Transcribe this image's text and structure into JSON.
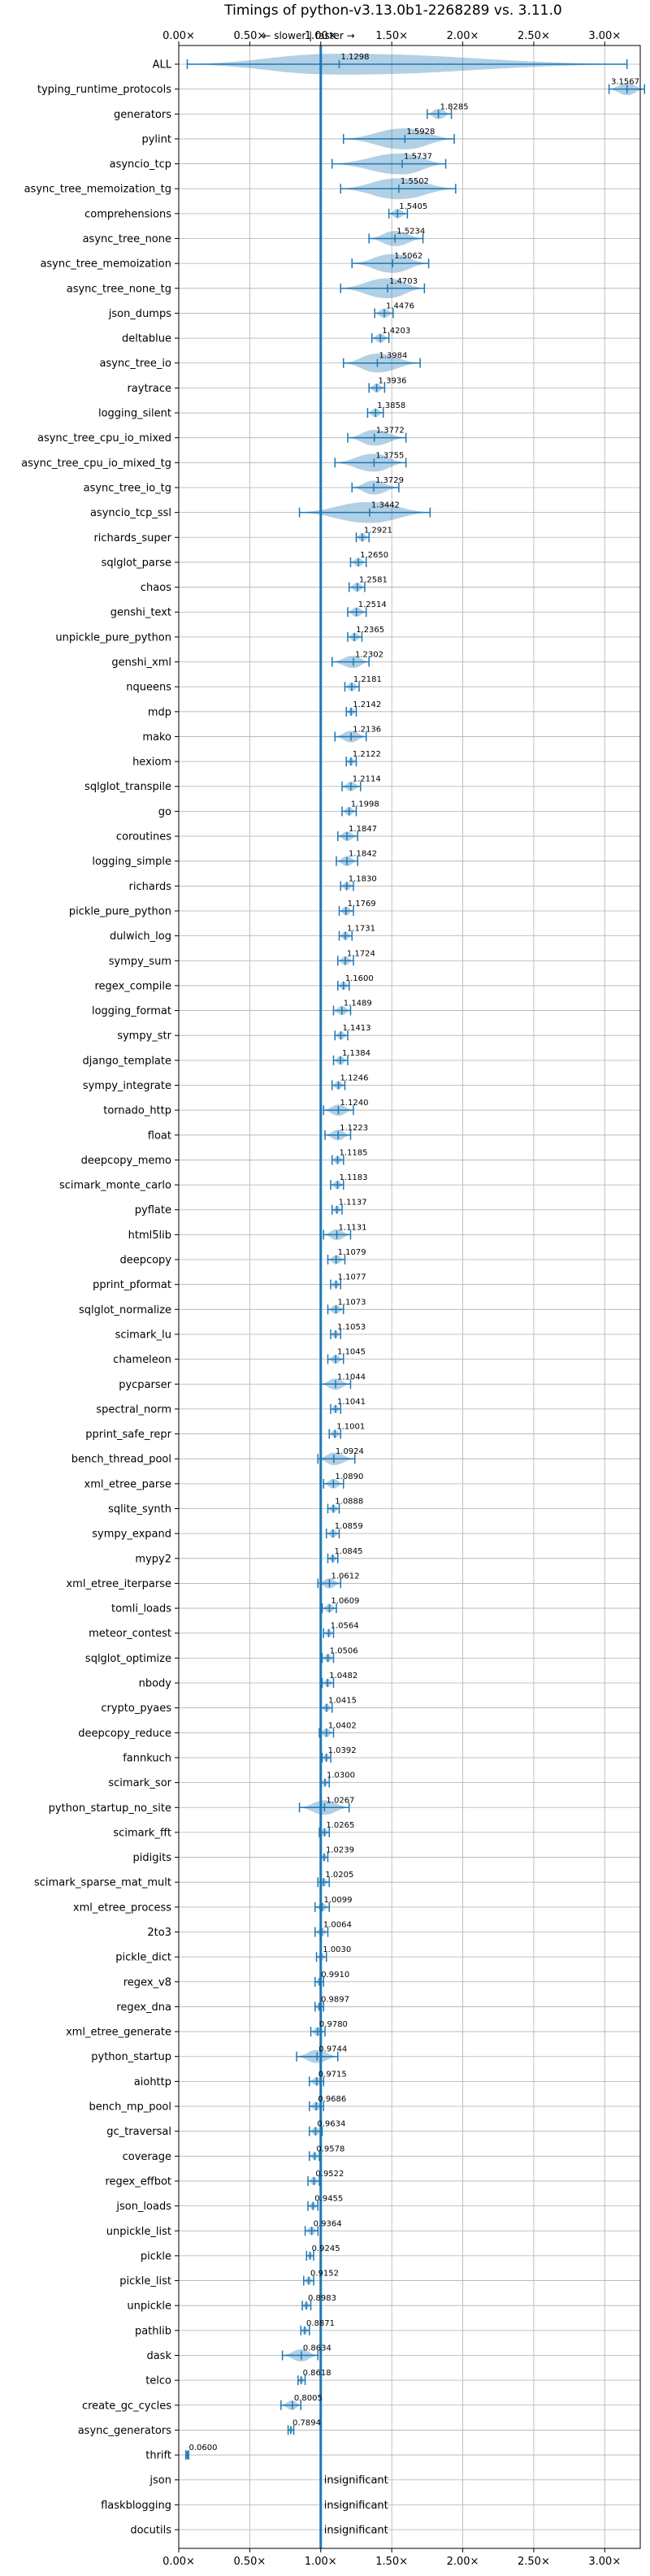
{
  "chart_data": {
    "type": "violin",
    "title": "Timings of python-v3.13.0b1-2268289 vs. 3.11.0",
    "annotation": "← slower | faster →",
    "xlim": [
      0,
      3.25
    ],
    "reference_x": 1.0,
    "grid": true,
    "x_ticks": [
      "0.00×",
      "0.50×",
      "1.00×",
      "1.50×",
      "2.00×",
      "2.50×",
      "3.00×"
    ],
    "x_tick_values": [
      0,
      0.5,
      1.0,
      1.5,
      2.0,
      2.5,
      3.0
    ],
    "insignificant_label": "insignificant",
    "colors": {
      "violin": "#1f77b4",
      "median_marker": "#d62728",
      "reference": "#1f77b4",
      "grid": "#b0b0b0"
    },
    "benchmarks": [
      {
        "name": "ALL",
        "value": 1.1298,
        "min": 0.06,
        "max": 3.1567
      },
      {
        "name": "typing_runtime_protocols",
        "value": 3.1567,
        "min": 3.03,
        "max": 3.28
      },
      {
        "name": "generators",
        "value": 1.8285,
        "min": 1.75,
        "max": 1.92
      },
      {
        "name": "pylint",
        "value": 1.5928,
        "min": 1.16,
        "max": 1.94
      },
      {
        "name": "asyncio_tcp",
        "value": 1.5737,
        "min": 1.08,
        "max": 1.88
      },
      {
        "name": "async_tree_memoization_tg",
        "value": 1.5502,
        "min": 1.14,
        "max": 1.95
      },
      {
        "name": "comprehensions",
        "value": 1.5405,
        "min": 1.48,
        "max": 1.61
      },
      {
        "name": "async_tree_none",
        "value": 1.5234,
        "min": 1.34,
        "max": 1.72
      },
      {
        "name": "async_tree_memoization",
        "value": 1.5062,
        "min": 1.22,
        "max": 1.76
      },
      {
        "name": "async_tree_none_tg",
        "value": 1.4703,
        "min": 1.14,
        "max": 1.73
      },
      {
        "name": "json_dumps",
        "value": 1.4476,
        "min": 1.38,
        "max": 1.51
      },
      {
        "name": "deltablue",
        "value": 1.4203,
        "min": 1.36,
        "max": 1.48
      },
      {
        "name": "async_tree_io",
        "value": 1.3984,
        "min": 1.16,
        "max": 1.7
      },
      {
        "name": "raytrace",
        "value": 1.3936,
        "min": 1.34,
        "max": 1.45
      },
      {
        "name": "logging_silent",
        "value": 1.3858,
        "min": 1.33,
        "max": 1.44
      },
      {
        "name": "async_tree_cpu_io_mixed",
        "value": 1.3772,
        "min": 1.19,
        "max": 1.6
      },
      {
        "name": "async_tree_cpu_io_mixed_tg",
        "value": 1.3755,
        "min": 1.1,
        "max": 1.6
      },
      {
        "name": "async_tree_io_tg",
        "value": 1.3729,
        "min": 1.22,
        "max": 1.55
      },
      {
        "name": "asyncio_tcp_ssl",
        "value": 1.3442,
        "min": 0.85,
        "max": 1.77
      },
      {
        "name": "richards_super",
        "value": 1.2921,
        "min": 1.25,
        "max": 1.34
      },
      {
        "name": "sqlglot_parse",
        "value": 1.265,
        "min": 1.21,
        "max": 1.32
      },
      {
        "name": "chaos",
        "value": 1.2581,
        "min": 1.2,
        "max": 1.31
      },
      {
        "name": "genshi_text",
        "value": 1.2514,
        "min": 1.19,
        "max": 1.32
      },
      {
        "name": "unpickle_pure_python",
        "value": 1.2365,
        "min": 1.19,
        "max": 1.29
      },
      {
        "name": "genshi_xml",
        "value": 1.2302,
        "min": 1.08,
        "max": 1.34
      },
      {
        "name": "nqueens",
        "value": 1.2181,
        "min": 1.17,
        "max": 1.27
      },
      {
        "name": "mdp",
        "value": 1.2142,
        "min": 1.18,
        "max": 1.25
      },
      {
        "name": "mako",
        "value": 1.2136,
        "min": 1.1,
        "max": 1.32
      },
      {
        "name": "hexiom",
        "value": 1.2122,
        "min": 1.18,
        "max": 1.25
      },
      {
        "name": "sqlglot_transpile",
        "value": 1.2114,
        "min": 1.15,
        "max": 1.28
      },
      {
        "name": "go",
        "value": 1.1998,
        "min": 1.15,
        "max": 1.25
      },
      {
        "name": "coroutines",
        "value": 1.1847,
        "min": 1.12,
        "max": 1.26
      },
      {
        "name": "logging_simple",
        "value": 1.1842,
        "min": 1.11,
        "max": 1.26
      },
      {
        "name": "richards",
        "value": 1.183,
        "min": 1.14,
        "max": 1.23
      },
      {
        "name": "pickle_pure_python",
        "value": 1.1769,
        "min": 1.13,
        "max": 1.23
      },
      {
        "name": "dulwich_log",
        "value": 1.1731,
        "min": 1.13,
        "max": 1.22
      },
      {
        "name": "sympy_sum",
        "value": 1.1724,
        "min": 1.12,
        "max": 1.23
      },
      {
        "name": "regex_compile",
        "value": 1.16,
        "min": 1.12,
        "max": 1.2
      },
      {
        "name": "logging_format",
        "value": 1.1489,
        "min": 1.09,
        "max": 1.21
      },
      {
        "name": "sympy_str",
        "value": 1.1413,
        "min": 1.1,
        "max": 1.19
      },
      {
        "name": "django_template",
        "value": 1.1384,
        "min": 1.09,
        "max": 1.19
      },
      {
        "name": "sympy_integrate",
        "value": 1.1246,
        "min": 1.08,
        "max": 1.17
      },
      {
        "name": "tornado_http",
        "value": 1.124,
        "min": 1.02,
        "max": 1.23
      },
      {
        "name": "float",
        "value": 1.1223,
        "min": 1.03,
        "max": 1.21
      },
      {
        "name": "deepcopy_memo",
        "value": 1.1185,
        "min": 1.08,
        "max": 1.16
      },
      {
        "name": "scimark_monte_carlo",
        "value": 1.1183,
        "min": 1.07,
        "max": 1.16
      },
      {
        "name": "pyflate",
        "value": 1.1137,
        "min": 1.08,
        "max": 1.15
      },
      {
        "name": "html5lib",
        "value": 1.1131,
        "min": 1.02,
        "max": 1.21
      },
      {
        "name": "deepcopy",
        "value": 1.1079,
        "min": 1.05,
        "max": 1.17
      },
      {
        "name": "pprint_pformat",
        "value": 1.1077,
        "min": 1.07,
        "max": 1.14
      },
      {
        "name": "sqlglot_normalize",
        "value": 1.1073,
        "min": 1.05,
        "max": 1.16
      },
      {
        "name": "scimark_lu",
        "value": 1.1053,
        "min": 1.07,
        "max": 1.14
      },
      {
        "name": "chameleon",
        "value": 1.1045,
        "min": 1.05,
        "max": 1.16
      },
      {
        "name": "pycparser",
        "value": 1.1044,
        "min": 1.0,
        "max": 1.21
      },
      {
        "name": "spectral_norm",
        "value": 1.1041,
        "min": 1.07,
        "max": 1.14
      },
      {
        "name": "pprint_safe_repr",
        "value": 1.1001,
        "min": 1.06,
        "max": 1.14
      },
      {
        "name": "bench_thread_pool",
        "value": 1.0924,
        "min": 0.98,
        "max": 1.24
      },
      {
        "name": "xml_etree_parse",
        "value": 1.089,
        "min": 1.02,
        "max": 1.16
      },
      {
        "name": "sqlite_synth",
        "value": 1.0888,
        "min": 1.05,
        "max": 1.13
      },
      {
        "name": "sympy_expand",
        "value": 1.0859,
        "min": 1.04,
        "max": 1.13
      },
      {
        "name": "mypy2",
        "value": 1.0845,
        "min": 1.05,
        "max": 1.12
      },
      {
        "name": "xml_etree_iterparse",
        "value": 1.0612,
        "min": 0.98,
        "max": 1.14
      },
      {
        "name": "tomli_loads",
        "value": 1.0609,
        "min": 1.01,
        "max": 1.11
      },
      {
        "name": "meteor_contest",
        "value": 1.0564,
        "min": 1.02,
        "max": 1.09
      },
      {
        "name": "sqlglot_optimize",
        "value": 1.0506,
        "min": 1.01,
        "max": 1.09
      },
      {
        "name": "nbody",
        "value": 1.0482,
        "min": 1.01,
        "max": 1.09
      },
      {
        "name": "crypto_pyaes",
        "value": 1.0415,
        "min": 1.0,
        "max": 1.08
      },
      {
        "name": "deepcopy_reduce",
        "value": 1.0402,
        "min": 0.99,
        "max": 1.09
      },
      {
        "name": "fannkuch",
        "value": 1.0392,
        "min": 1.01,
        "max": 1.07
      },
      {
        "name": "scimark_sor",
        "value": 1.03,
        "min": 1.0,
        "max": 1.06
      },
      {
        "name": "python_startup_no_site",
        "value": 1.0267,
        "min": 0.85,
        "max": 1.2
      },
      {
        "name": "scimark_fft",
        "value": 1.0265,
        "min": 0.99,
        "max": 1.06
      },
      {
        "name": "pidigits",
        "value": 1.0239,
        "min": 1.0,
        "max": 1.05
      },
      {
        "name": "scimark_sparse_mat_mult",
        "value": 1.0205,
        "min": 0.98,
        "max": 1.06
      },
      {
        "name": "xml_etree_process",
        "value": 1.0099,
        "min": 0.96,
        "max": 1.06
      },
      {
        "name": "2to3",
        "value": 1.0064,
        "min": 0.96,
        "max": 1.05
      },
      {
        "name": "pickle_dict",
        "value": 1.003,
        "min": 0.97,
        "max": 1.04
      },
      {
        "name": "regex_v8",
        "value": 0.991,
        "min": 0.96,
        "max": 1.02
      },
      {
        "name": "regex_dna",
        "value": 0.9897,
        "min": 0.96,
        "max": 1.02
      },
      {
        "name": "xml_etree_generate",
        "value": 0.978,
        "min": 0.93,
        "max": 1.03
      },
      {
        "name": "python_startup",
        "value": 0.9744,
        "min": 0.83,
        "max": 1.12
      },
      {
        "name": "aiohttp",
        "value": 0.9715,
        "min": 0.92,
        "max": 1.02
      },
      {
        "name": "bench_mp_pool",
        "value": 0.9686,
        "min": 0.92,
        "max": 1.02
      },
      {
        "name": "gc_traversal",
        "value": 0.9634,
        "min": 0.92,
        "max": 1.01
      },
      {
        "name": "coverage",
        "value": 0.9578,
        "min": 0.92,
        "max": 0.99
      },
      {
        "name": "regex_effbot",
        "value": 0.9522,
        "min": 0.91,
        "max": 0.99
      },
      {
        "name": "json_loads",
        "value": 0.9455,
        "min": 0.91,
        "max": 0.98
      },
      {
        "name": "unpickle_list",
        "value": 0.9364,
        "min": 0.89,
        "max": 0.98
      },
      {
        "name": "pickle",
        "value": 0.9245,
        "min": 0.9,
        "max": 0.95
      },
      {
        "name": "pickle_list",
        "value": 0.9152,
        "min": 0.88,
        "max": 0.95
      },
      {
        "name": "unpickle",
        "value": 0.8983,
        "min": 0.87,
        "max": 0.93
      },
      {
        "name": "pathlib",
        "value": 0.8871,
        "min": 0.86,
        "max": 0.92
      },
      {
        "name": "dask",
        "value": 0.8634,
        "min": 0.73,
        "max": 0.98
      },
      {
        "name": "telco",
        "value": 0.8618,
        "min": 0.84,
        "max": 0.89
      },
      {
        "name": "create_gc_cycles",
        "value": 0.8005,
        "min": 0.72,
        "max": 0.86
      },
      {
        "name": "async_generators",
        "value": 0.7894,
        "min": 0.77,
        "max": 0.81
      },
      {
        "name": "thrift",
        "value": 0.06,
        "min": 0.05,
        "max": 0.07
      },
      {
        "name": "json",
        "value": null
      },
      {
        "name": "flaskblogging",
        "value": null
      },
      {
        "name": "docutils",
        "value": null
      }
    ]
  }
}
